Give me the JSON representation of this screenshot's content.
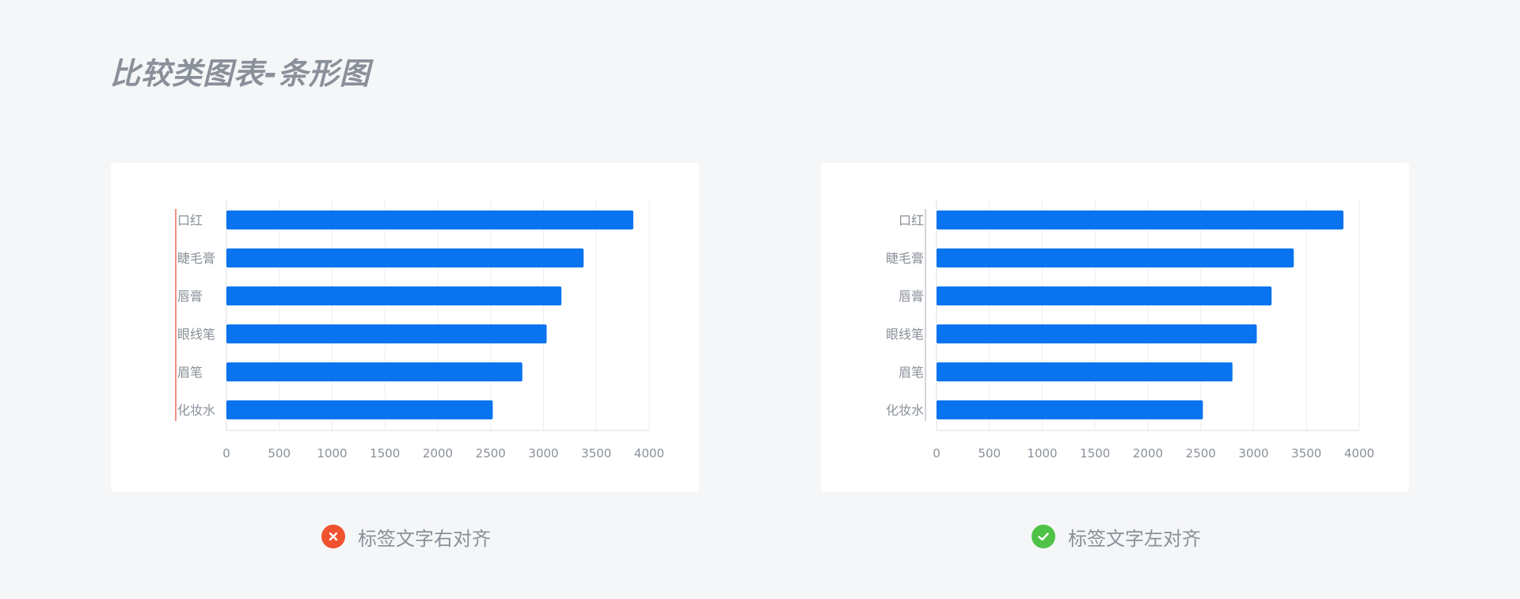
{
  "page": {
    "title": "比较类图表-条形图"
  },
  "colors": {
    "bar": "#0a74f0",
    "wrong": "#f0512f",
    "right": "#4fc348",
    "guide_wrong": "#f26b5b",
    "guide_right": "#c3c7cd"
  },
  "captions": {
    "left": {
      "icon": "close-icon",
      "text": "标签文字右对齐"
    },
    "right": {
      "icon": "check-icon",
      "text": "标签文字左对齐"
    }
  },
  "chart_data": [
    {
      "type": "bar",
      "orientation": "horizontal",
      "label_alignment": "left",
      "categories": [
        "口红",
        "睫毛膏",
        "唇膏",
        "眼线笔",
        "眉笔",
        "化妆水"
      ],
      "values": [
        3850,
        3380,
        3170,
        3030,
        2800,
        2520
      ],
      "xlim": [
        0,
        4000
      ],
      "xticks": [
        "0",
        "500",
        "1000",
        "1500",
        "2000",
        "2500",
        "3000",
        "3500",
        "4000"
      ],
      "grid": true
    },
    {
      "type": "bar",
      "orientation": "horizontal",
      "label_alignment": "right",
      "categories": [
        "口红",
        "睫毛膏",
        "唇膏",
        "眼线笔",
        "眉笔",
        "化妆水"
      ],
      "values": [
        3850,
        3380,
        3170,
        3030,
        2800,
        2520
      ],
      "xlim": [
        0,
        4000
      ],
      "xticks": [
        "0",
        "500",
        "1000",
        "1500",
        "2000",
        "2500",
        "3000",
        "3500",
        "4000"
      ],
      "grid": true
    }
  ]
}
